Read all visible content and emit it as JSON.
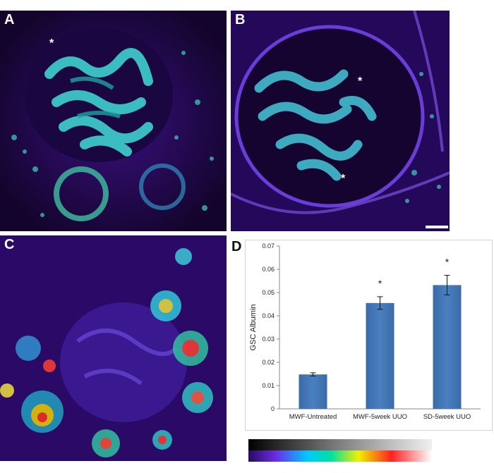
{
  "panels": [
    {
      "id": "A",
      "label": "A",
      "stars": [
        "*"
      ]
    },
    {
      "id": "B",
      "label": "B",
      "stars": [
        "*",
        "*"
      ]
    },
    {
      "id": "C",
      "label": "C",
      "stars": []
    },
    {
      "id": "D",
      "label": "D"
    }
  ],
  "chart_data": {
    "type": "bar",
    "categories": [
      "MWF-Untreated",
      "MWF-5week UUO",
      "SD-5week UUO"
    ],
    "values": [
      0.0148,
      0.0455,
      0.0532
    ],
    "errors": [
      0.0007,
      0.0027,
      0.0042
    ],
    "significance": [
      "",
      "*",
      "*"
    ],
    "title": "",
    "xlabel": "",
    "ylabel": "GSC Albumin",
    "ylim": [
      0,
      0.07
    ],
    "yticks": [
      "0",
      "0.01",
      "0.02",
      "0.03",
      "0.04",
      "0.05",
      "0.06",
      "0.07"
    ],
    "grid": false,
    "bar_color": "#4a80c0"
  },
  "colorbar": {
    "colors": [
      "#000000",
      "#808080",
      "#e6e6e6",
      "#2a0a5e",
      "#6a2ce8",
      "#00c8ff",
      "#00e0a0",
      "#f0f000",
      "#ff2020",
      "#ffffff"
    ]
  }
}
